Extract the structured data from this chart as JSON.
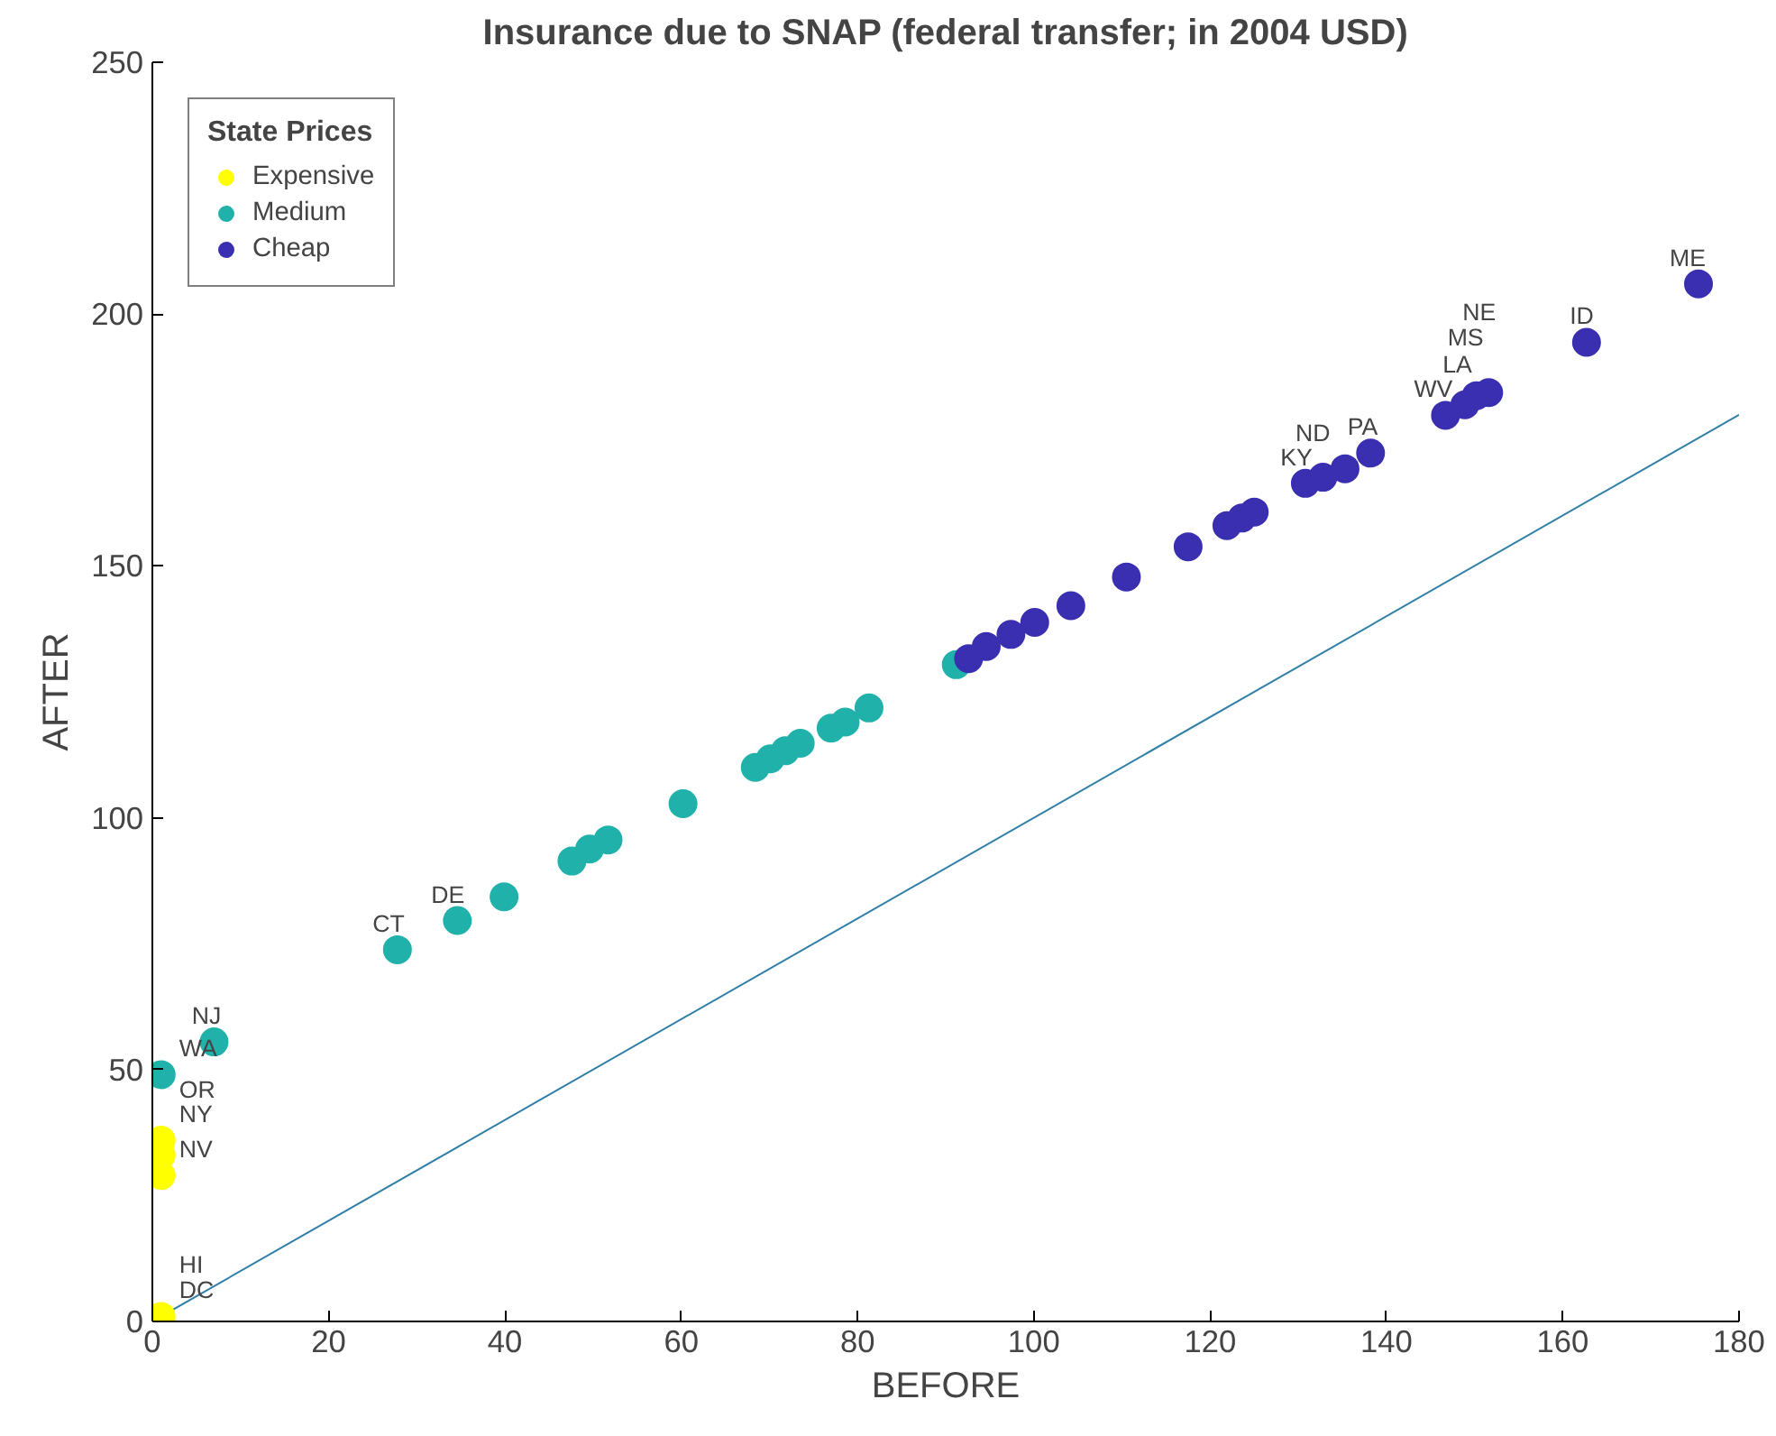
{
  "chart_data": {
    "type": "scatter",
    "title": "Insurance due to SNAP (federal transfer; in 2004 USD)",
    "xlabel": "BEFORE",
    "ylabel": "AFTER",
    "legend_title": "State Prices",
    "xlim": [
      0,
      180
    ],
    "ylim": [
      0,
      250
    ],
    "xticks": [
      0,
      20,
      40,
      60,
      80,
      100,
      120,
      140,
      160,
      180
    ],
    "yticks": [
      0,
      50,
      100,
      150,
      200,
      250
    ],
    "grid": false,
    "legend": "top left",
    "marker": "circle",
    "series": [
      {
        "name": "Expensive",
        "color": "#ffff00",
        "x": [
          1,
          1,
          1,
          1
        ],
        "values": [
          36,
          29,
          33,
          1
        ]
      },
      {
        "name": "Medium",
        "color": "#20b2aa",
        "x": [
          1,
          7,
          27.8,
          34.6,
          39.9,
          47.6,
          49.6,
          51.7,
          60.2,
          68.4,
          70.1,
          71.8,
          73.5,
          77,
          78.6,
          81.3,
          91.2
        ],
        "values": [
          49,
          55.5,
          73.8,
          79.6,
          84.3,
          91.4,
          93.8,
          95.6,
          102.8,
          110,
          111.7,
          113.3,
          114.8,
          117.8,
          119,
          121.8,
          130.4
        ]
      },
      {
        "name": "Cheap",
        "color": "#3a2fb0",
        "x": [
          92.6,
          94.6,
          97.4,
          100.1,
          104.2,
          110.5,
          117.5,
          121.9,
          123.6,
          125,
          130.8,
          132.8,
          135.3,
          138.2,
          146.7,
          148.9,
          150.2,
          151.6,
          162.7,
          175.4
        ],
        "values": [
          131.6,
          134,
          136.4,
          138.8,
          142.1,
          147.8,
          153.8,
          158,
          159.5,
          160.7,
          166.4,
          167.6,
          169.3,
          172.4,
          179.9,
          182,
          183.8,
          184.4,
          194.4,
          206
        ]
      },
      {
        "type": "line",
        "color": "#2f7fa8",
        "x": [
          0,
          180
        ],
        "values": [
          0,
          180
        ],
        "marker": "none"
      }
    ],
    "annotations": [
      {
        "text": "NY",
        "x": 1,
        "y": 36
      },
      {
        "text": "OR",
        "x": 1,
        "y": 33
      },
      {
        "text": "NV",
        "x": 1,
        "y": 29
      },
      {
        "text": "DC",
        "x": 1,
        "y": 1
      },
      {
        "text": "HI",
        "x": 1,
        "y": 1
      },
      {
        "text": "WA",
        "x": 1,
        "y": 49
      },
      {
        "text": "NJ",
        "x": 7,
        "y": 55.5
      },
      {
        "text": "CT",
        "x": 27.8,
        "y": 73.8
      },
      {
        "text": "DE",
        "x": 34.6,
        "y": 79.6
      },
      {
        "text": "KY",
        "x": 130.8,
        "y": 166.4
      },
      {
        "text": "ND",
        "x": 132.8,
        "y": 167.6
      },
      {
        "text": "PA",
        "x": 138.2,
        "y": 172.4
      },
      {
        "text": "WV",
        "x": 146.7,
        "y": 179.9
      },
      {
        "text": "LA",
        "x": 148.9,
        "y": 182
      },
      {
        "text": "MS",
        "x": 150.2,
        "y": 183.8
      },
      {
        "text": "NE",
        "x": 151.6,
        "y": 184.4
      },
      {
        "text": "ID",
        "x": 162.7,
        "y": 194.4
      },
      {
        "text": "ME",
        "x": 175.4,
        "y": 206
      }
    ]
  }
}
